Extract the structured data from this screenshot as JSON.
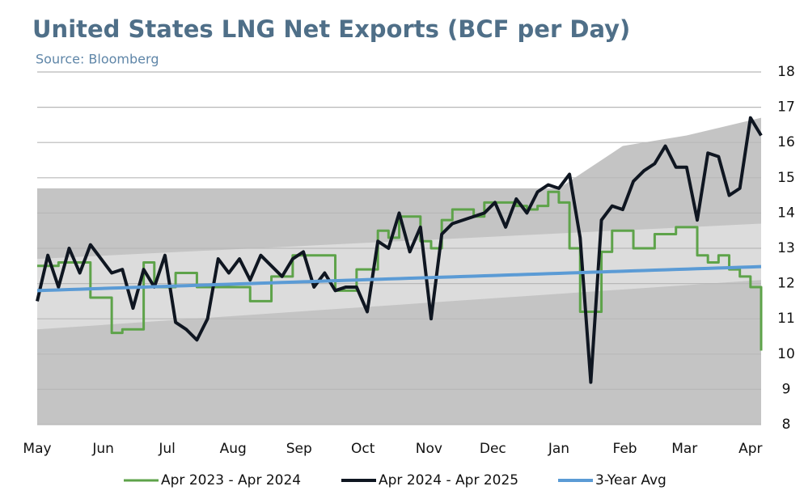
{
  "chart_data": {
    "type": "line",
    "title": "United States LNG Net Exports (BCF per Day)",
    "subtitle": "Source: Bloomberg",
    "x": [
      0,
      5,
      10,
      15,
      20,
      25,
      30,
      35,
      40,
      45,
      50,
      55,
      60,
      65,
      70,
      75,
      80,
      85,
      90,
      95,
      100,
      105,
      110,
      115,
      120,
      125,
      130,
      135,
      140,
      145,
      150,
      155,
      160,
      165,
      170,
      175,
      180,
      185,
      190,
      195,
      200,
      205,
      210,
      215,
      220,
      225,
      230,
      235,
      240,
      245,
      250,
      255,
      260,
      265,
      270,
      275,
      280,
      285,
      290,
      295,
      300,
      305,
      310,
      315,
      320,
      325,
      330,
      335,
      340
    ],
    "xlim": [
      0,
      340
    ],
    "xticks": [
      {
        "value": 0,
        "label": "May"
      },
      {
        "value": 31,
        "label": "Jun"
      },
      {
        "value": 61,
        "label": "Jul"
      },
      {
        "value": 92,
        "label": "Aug"
      },
      {
        "value": 123,
        "label": "Sep"
      },
      {
        "value": 153,
        "label": "Oct"
      },
      {
        "value": 184,
        "label": "Nov"
      },
      {
        "value": 214,
        "label": "Dec"
      },
      {
        "value": 245,
        "label": "Jan"
      },
      {
        "value": 276,
        "label": "Feb"
      },
      {
        "value": 304,
        "label": "Mar"
      },
      {
        "value": 335,
        "label": "Apr"
      }
    ],
    "ylim": [
      8,
      18
    ],
    "yticks": [
      8,
      9,
      10,
      11,
      12,
      13,
      14,
      15,
      16,
      17,
      18
    ],
    "grid": true,
    "bands": [
      {
        "color": "#c4c4c4",
        "x": [
          0,
          245,
          275,
          305,
          340
        ],
        "upper": [
          14.7,
          14.7,
          15.9,
          16.2,
          16.7
        ],
        "lower": [
          8,
          8,
          8,
          8,
          8
        ]
      },
      {
        "color": "#dcdcdc",
        "x": [
          0,
          340
        ],
        "upper": [
          12.7,
          13.7
        ],
        "lower": [
          10.7,
          12.1
        ]
      }
    ],
    "series": [
      {
        "name": "Apr 2023 - Apr 2024",
        "color": "#5ea34a",
        "width": 3,
        "step": true,
        "values": [
          12.5,
          12.5,
          12.6,
          12.6,
          12.6,
          11.6,
          11.6,
          10.6,
          10.7,
          10.7,
          12.6,
          11.9,
          11.9,
          12.3,
          12.3,
          11.9,
          11.9,
          11.9,
          11.9,
          11.9,
          11.5,
          11.5,
          12.2,
          12.2,
          12.8,
          12.8,
          12.8,
          12.8,
          11.8,
          11.8,
          12.4,
          12.4,
          13.5,
          13.3,
          13.9,
          13.9,
          13.2,
          13.0,
          13.8,
          14.1,
          14.1,
          13.9,
          14.3,
          14.3,
          14.3,
          14.2,
          14.1,
          14.2,
          14.6,
          14.3,
          13.0,
          11.2,
          11.2,
          12.9,
          13.5,
          13.5,
          13.0,
          13.0,
          13.4,
          13.4,
          13.6,
          13.6,
          12.8,
          12.6,
          12.8,
          12.4,
          12.2,
          11.9,
          10.1
        ]
      },
      {
        "name": "Apr 2024 - Apr 2025",
        "color": "#0f1621",
        "width": 4,
        "step": false,
        "values": [
          11.5,
          12.8,
          11.9,
          13.0,
          12.3,
          13.1,
          12.7,
          12.3,
          12.4,
          11.3,
          12.4,
          11.9,
          12.8,
          10.9,
          10.7,
          10.4,
          11.0,
          12.7,
          12.3,
          12.7,
          12.1,
          12.8,
          12.5,
          12.2,
          12.7,
          12.9,
          11.9,
          12.3,
          11.8,
          11.9,
          11.9,
          11.2,
          13.2,
          13.0,
          14.0,
          12.9,
          13.6,
          11.0,
          13.4,
          13.7,
          13.8,
          13.9,
          14.0,
          14.3,
          13.6,
          14.4,
          14.0,
          14.6,
          14.8,
          14.7,
          15.1,
          13.3,
          9.2,
          13.8,
          14.2,
          14.1,
          14.9,
          15.2,
          15.4,
          15.9,
          15.3,
          15.3,
          13.8,
          15.7,
          15.6,
          14.5,
          14.7,
          16.7,
          16.2
        ]
      },
      {
        "name": "3-Year Avg",
        "color": "#5b9bd5",
        "width": 4,
        "step": false,
        "values": [
          11.8,
          11.81,
          11.82,
          11.83,
          11.84,
          11.85,
          11.86,
          11.87,
          11.88,
          11.89,
          11.9,
          11.91,
          11.92,
          11.93,
          11.94,
          11.95,
          11.96,
          11.97,
          11.98,
          11.99,
          12.0,
          12.01,
          12.02,
          12.03,
          12.04,
          12.05,
          12.06,
          12.07,
          12.08,
          12.09,
          12.1,
          12.11,
          12.12,
          12.13,
          12.14,
          12.15,
          12.16,
          12.17,
          12.18,
          12.19,
          12.2,
          12.21,
          12.22,
          12.23,
          12.24,
          12.25,
          12.26,
          12.27,
          12.28,
          12.29,
          12.3,
          12.31,
          12.32,
          12.33,
          12.34,
          12.35,
          12.36,
          12.37,
          12.38,
          12.39,
          12.4,
          12.41,
          12.42,
          12.43,
          12.44,
          12.45,
          12.46,
          12.47,
          12.48
        ]
      }
    ]
  }
}
